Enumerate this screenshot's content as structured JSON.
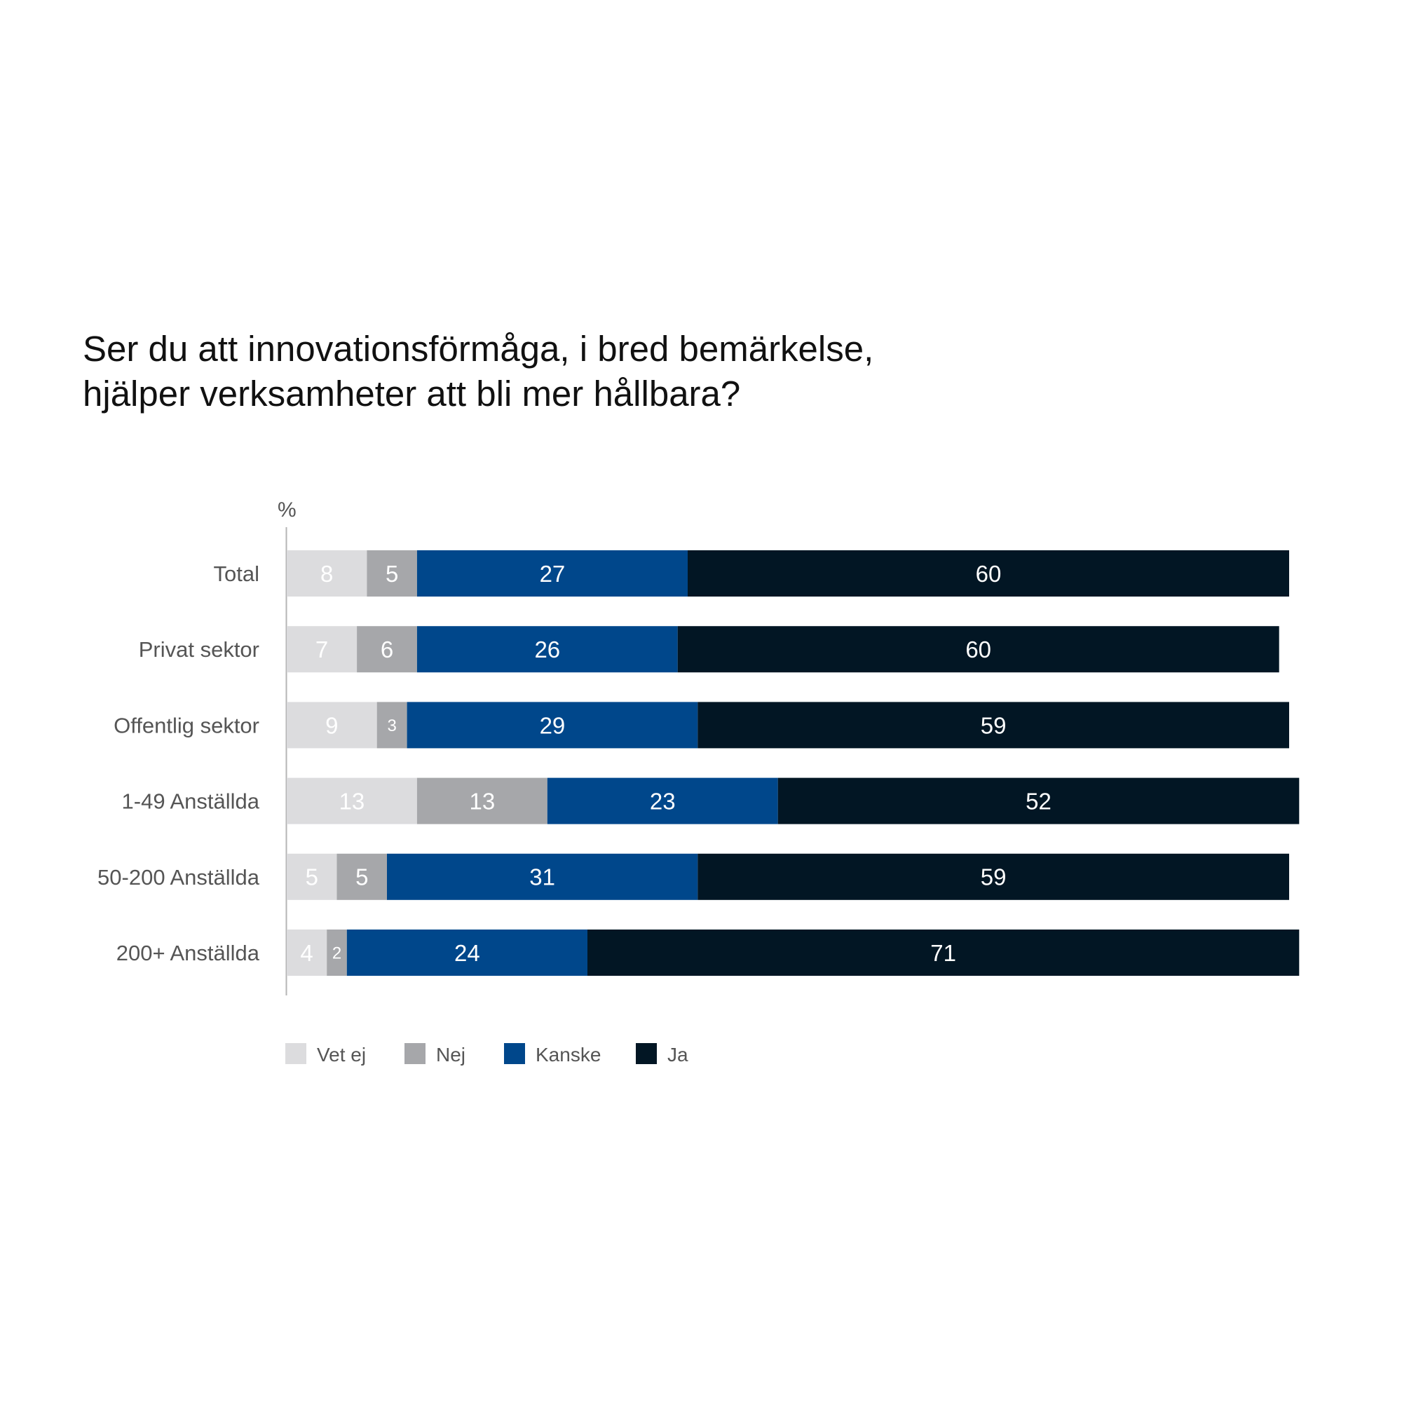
{
  "title_lines": [
    "Ser du att innovationsförmåga, i bred bemärkelse,",
    "hjälper verksamheter att bli mer hållbara?"
  ],
  "chart_data": {
    "type": "bar",
    "orientation": "horizontal",
    "stacked": true,
    "unit_label": "%",
    "categories": [
      "Total",
      "Privat sektor",
      "Offentlig sektor",
      "1-49 Anställda",
      "50-200 Anställda",
      "200+ Anställda"
    ],
    "series": [
      {
        "name": "Vet ej",
        "color": "#dcdcde",
        "label_color": "#666666",
        "values": [
          8,
          7,
          9,
          13,
          5,
          4
        ]
      },
      {
        "name": "Nej",
        "color": "#a6a7aa",
        "label_color": "#ffffff",
        "values": [
          5,
          6,
          3,
          13,
          5,
          2
        ]
      },
      {
        "name": "Kanske",
        "color": "#00478b",
        "label_color": "#ffffff",
        "values": [
          27,
          26,
          29,
          23,
          31,
          24
        ]
      },
      {
        "name": "Ja",
        "color": "#021624",
        "label_color": "#ffffff",
        "values": [
          60,
          60,
          59,
          52,
          59,
          71
        ]
      }
    ],
    "xlim": [
      0,
      100
    ],
    "grid": false,
    "legend_position": "bottom-left",
    "data_labels": true
  }
}
